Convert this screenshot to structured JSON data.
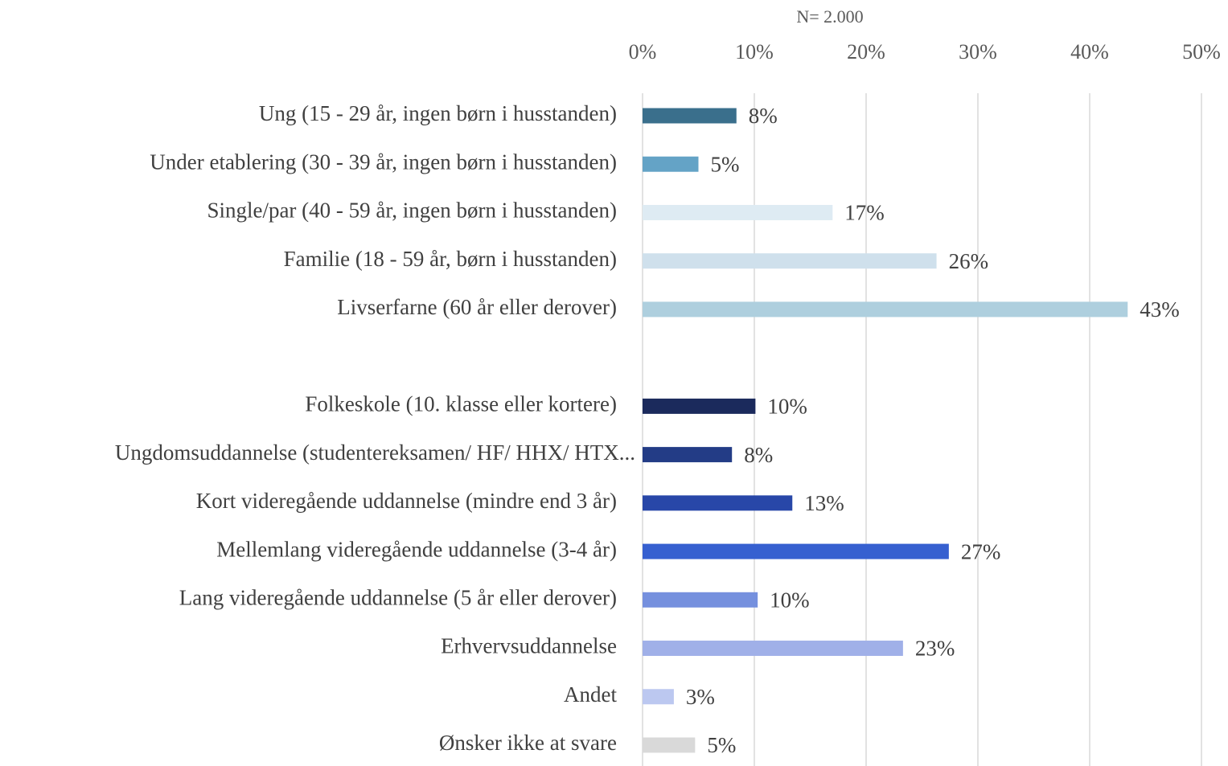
{
  "chart_data": {
    "type": "hbar",
    "subtitle": "N= 2.000",
    "categories": [
      "Ung (15 - 29 år, ingen børn i husstanden)",
      "Under etablering (30 - 39 år, ingen børn i husstanden)",
      "Single/par (40 - 59 år, ingen børn i husstanden)",
      "Familie (18 - 59 år, børn i husstanden)",
      "Livserfarne (60 år eller derover)",
      null,
      "Folkeskole (10. klasse eller kortere)",
      "Ungdomsuddannelse (studentereksamen/ HF/ HHX/ HTX...",
      "Kort videregående uddannelse (mindre end 3 år)",
      "Mellemlang videregående uddannelse (3-4 år)",
      "Lang videregående uddannelse (5 år eller derover)",
      "Erhvervsuddannelse",
      "Andet",
      "Ønsker ikke at svare"
    ],
    "values": [
      8.4,
      5.0,
      17.0,
      26.3,
      43.4,
      null,
      10.1,
      8.0,
      13.4,
      27.4,
      10.3,
      23.3,
      2.8,
      4.7
    ],
    "value_labels": [
      "8%",
      "5%",
      "17%",
      "26%",
      "43%",
      null,
      "10%",
      "8%",
      "13%",
      "27%",
      "10%",
      "23%",
      "3%",
      "5%"
    ],
    "colors": [
      "#3a6f8c",
      "#64a3c6",
      "#deebf3",
      "#cfe0ec",
      "#aecfde",
      null,
      "#1b2a5c",
      "#233c86",
      "#2847a8",
      "#3660d0",
      "#7590de",
      "#a0b0e8",
      "#bcc8f0",
      "#d9d9d9"
    ],
    "xlim": [
      0,
      50
    ],
    "xticks": [
      {
        "value": 0,
        "label": "0%"
      },
      {
        "value": 10,
        "label": "10%"
      },
      {
        "value": 20,
        "label": "20%"
      },
      {
        "value": 30,
        "label": "30%"
      },
      {
        "value": 40,
        "label": "40%"
      },
      {
        "value": 50,
        "label": "50%"
      }
    ],
    "grid": true
  }
}
